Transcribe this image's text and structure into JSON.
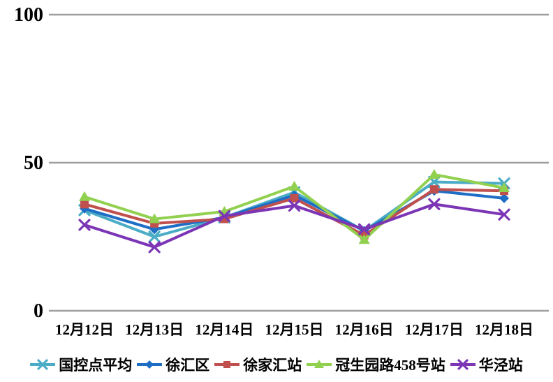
{
  "chart_data": {
    "type": "line",
    "title": "",
    "xlabel": "",
    "ylabel": "",
    "categories": [
      "12月12日",
      "12月13日",
      "12月14日",
      "12月15日",
      "12月16日",
      "12月17日",
      "12月18日"
    ],
    "series": [
      {
        "name": "国控点平均",
        "color": "#4BACC6",
        "marker": "x",
        "values": [
          34,
          25,
          31.5,
          40,
          27,
          43.5,
          43
        ]
      },
      {
        "name": "徐汇区",
        "color": "#1F6EC5",
        "marker": "diamond",
        "values": [
          34.5,
          27.5,
          31.5,
          39,
          27,
          40.5,
          38
        ]
      },
      {
        "name": "徐家汇站",
        "color": "#C0504D",
        "marker": "square",
        "values": [
          36,
          29.5,
          31,
          38,
          25.5,
          41,
          40.5
        ]
      },
      {
        "name": "冠生园路458号站",
        "color": "#92D050",
        "marker": "triangle",
        "values": [
          38.5,
          31,
          33.5,
          42,
          24,
          46,
          41.5
        ]
      },
      {
        "name": "华泾站",
        "color": "#7B35B5",
        "marker": "x",
        "values": [
          29,
          21.5,
          32,
          35.5,
          27.5,
          36,
          32.5
        ]
      }
    ],
    "ylim": [
      0,
      100
    ],
    "yticks": [
      0,
      50,
      100
    ],
    "grid": "horizontal",
    "gridline_color": "#9E9E9E",
    "text_color": "#000000",
    "legend_position": "bottom"
  }
}
